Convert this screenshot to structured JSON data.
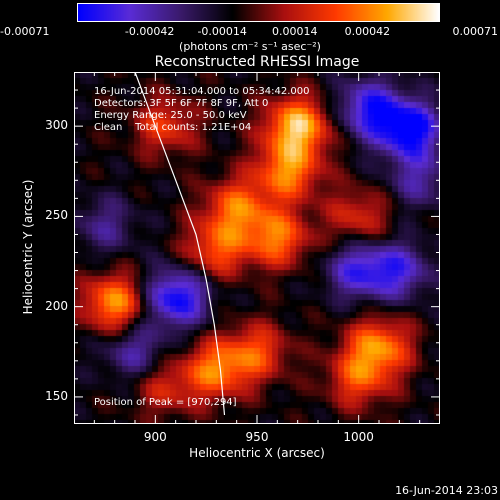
{
  "chart_data": {
    "type": "heatmap",
    "title": "Reconstructed RHESSI Image",
    "xlabel": "Heliocentric X (arcsec)",
    "ylabel": "Heliocentric Y (arcsec)",
    "xlim": [
      860,
      1040
    ],
    "ylim": [
      135,
      330
    ],
    "xticks": [
      900,
      950,
      1000
    ],
    "yticks": [
      150,
      200,
      250,
      300
    ],
    "colorbar": {
      "range": [
        -0.00071,
        0.00071
      ],
      "ticks": [
        "-0.00071",
        "-0.00042",
        "-0.00014",
        "0.00014",
        "0.00042",
        "0.00071"
      ],
      "units_label": "(photons cm⁻² s⁻¹ asec⁻²)",
      "colormap": [
        "#0000ff",
        "#5a2cd6",
        "#3a1a6a",
        "#000000",
        "#aa1010",
        "#ff3a00",
        "#ffa800",
        "#ffffff"
      ]
    },
    "annotations": {
      "time_range": "16-Jun-2014 05:31:04.000 to 05:34:42.000",
      "detectors": "Detectors: 3F 5F 6F 7F 8F 9F, Att 0",
      "energy": "Energy Range: 25.0 - 50.0 keV",
      "clean": "Clean    Total counts: 1.21E+04",
      "peak": "Position of Peak = [970,294]"
    },
    "peak_position": [
      970,
      294
    ],
    "features": [
      {
        "x": 970,
        "y": 300,
        "level": 0.95
      },
      {
        "x": 965,
        "y": 275,
        "level": 0.75
      },
      {
        "x": 880,
        "y": 202,
        "level": 0.82
      },
      {
        "x": 905,
        "y": 300,
        "level": 0.5
      },
      {
        "x": 940,
        "y": 255,
        "level": 0.65
      },
      {
        "x": 960,
        "y": 238,
        "level": 0.7
      },
      {
        "x": 930,
        "y": 232,
        "level": 0.6
      },
      {
        "x": 1000,
        "y": 250,
        "level": 0.45
      },
      {
        "x": 1010,
        "y": 178,
        "level": 0.75
      },
      {
        "x": 1000,
        "y": 160,
        "level": 0.55
      },
      {
        "x": 930,
        "y": 165,
        "level": 0.7
      },
      {
        "x": 950,
        "y": 175,
        "level": 0.55
      },
      {
        "x": 905,
        "y": 155,
        "level": 0.4
      },
      {
        "x": 1030,
        "y": 270,
        "level": -0.4
      },
      {
        "x": 910,
        "y": 205,
        "level": -0.85
      },
      {
        "x": 1005,
        "y": 310,
        "level": -0.7
      },
      {
        "x": 1025,
        "y": 298,
        "level": -0.9
      },
      {
        "x": 1000,
        "y": 220,
        "level": -0.6
      },
      {
        "x": 1020,
        "y": 220,
        "level": -0.55
      },
      {
        "x": 875,
        "y": 245,
        "level": -0.35
      },
      {
        "x": 890,
        "y": 175,
        "level": -0.45
      }
    ],
    "limb_arc": [
      [
        890,
        330
      ],
      [
        900,
        300
      ],
      [
        910,
        270
      ],
      [
        920,
        240
      ],
      [
        925,
        215
      ],
      [
        929,
        190
      ],
      [
        932,
        165
      ],
      [
        934,
        140
      ]
    ]
  },
  "footer": {
    "timestamp": "16-Jun-2014 23:03"
  }
}
